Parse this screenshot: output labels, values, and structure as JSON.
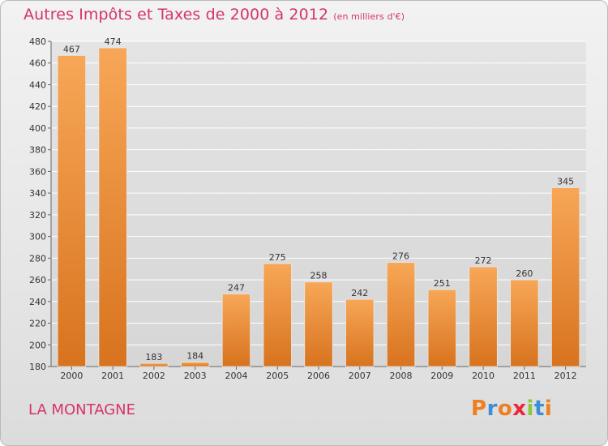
{
  "header": {
    "title": "Autres Impôts et Taxes de 2000 à 2012",
    "subtitle": "(en milliers d'€)"
  },
  "footer": {
    "commune": "LA MONTAGNE",
    "logo_text": "Proxiti",
    "logo_colors": [
      "#f07e1e",
      "#3a8fd8",
      "#f07e1e",
      "#e8283c",
      "#8cc63f",
      "#3a8fd8",
      "#f07e1e"
    ]
  },
  "colors": {
    "bar_top": "#f7a757",
    "bar_bottom": "#d8731e",
    "grid": "#ffffff",
    "title": "#d6336c"
  },
  "chart_data": {
    "type": "bar",
    "title": "Autres Impôts et Taxes de 2000 à 2012",
    "xlabel": "",
    "ylabel": "",
    "categories": [
      "2000",
      "2001",
      "2002",
      "2003",
      "2004",
      "2005",
      "2006",
      "2007",
      "2008",
      "2009",
      "2010",
      "2011",
      "2012"
    ],
    "values": [
      467,
      474,
      183,
      184,
      247,
      275,
      258,
      242,
      276,
      251,
      272,
      260,
      345
    ],
    "ylim": [
      180,
      480
    ],
    "yticks": [
      180,
      200,
      220,
      240,
      260,
      280,
      300,
      320,
      340,
      360,
      380,
      400,
      420,
      440,
      460,
      480
    ],
    "grid": true,
    "legend": "none"
  }
}
